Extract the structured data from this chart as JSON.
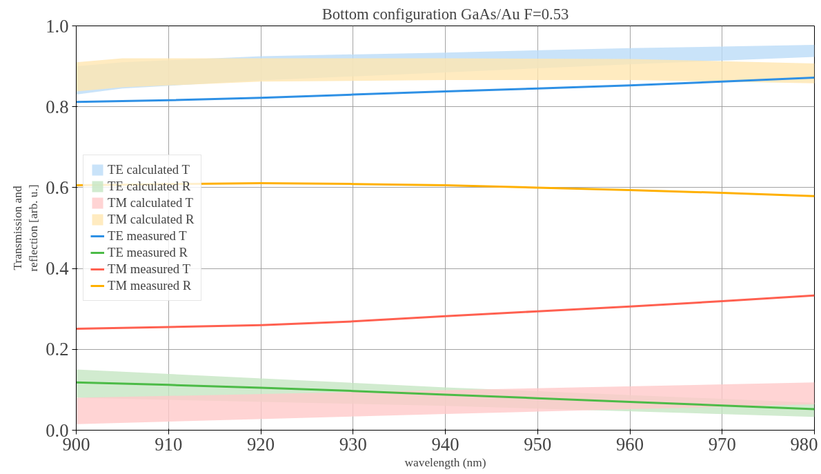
{
  "chart_data": {
    "type": "line",
    "title": "Bottom configuration GaAs/Au F=0.53",
    "xlabel": "wavelength (nm)",
    "ylabel": "Transmission and\nreflection [arb. u.]",
    "xlim": [
      900,
      980
    ],
    "ylim": [
      0,
      1
    ],
    "xticks": [
      900,
      910,
      920,
      930,
      940,
      950,
      960,
      970,
      980
    ],
    "yticks": [
      {
        "value": 0,
        "label": "0.0"
      },
      0.2,
      0.4,
      0.6,
      0.8,
      {
        "value": 1,
        "label": "1.0"
      }
    ],
    "grid": true,
    "legend": "left",
    "series": [
      {
        "name": "TE calculated T",
        "color": "#bcdcf7",
        "x": [
          900,
          905,
          920,
          940,
          960,
          980
        ],
        "values": [
          null,
          null,
          null,
          null,
          null,
          null
        ],
        "lower": [
          0.83,
          0.845,
          0.865,
          0.885,
          0.905,
          0.923
        ],
        "upper": [
          0.9,
          0.91,
          0.925,
          0.934,
          0.945,
          0.953
        ]
      },
      {
        "name": "TE calculated R",
        "color": "#c5e6c3",
        "x": [
          900,
          940,
          980
        ],
        "values": [
          null,
          null,
          null
        ],
        "lower": [
          0.08,
          0.06,
          0.033
        ],
        "upper": [
          0.15,
          0.106,
          0.068
        ]
      },
      {
        "name": "TM calculated T",
        "color": "#ffc9c9",
        "x": [
          900,
          940,
          980
        ],
        "values": [
          null,
          null,
          null
        ],
        "lower": [
          0.015,
          0.04,
          0.064
        ],
        "upper": [
          0.08,
          0.099,
          0.118
        ]
      },
      {
        "name": "TM calculated R",
        "color": "#ffe6b0",
        "x": [
          900,
          905,
          920,
          940,
          960,
          980
        ],
        "values": [
          null,
          null,
          null,
          null,
          null,
          null
        ],
        "lower": [
          0.838,
          0.848,
          0.862,
          0.866,
          0.866,
          0.858
        ],
        "upper": [
          0.91,
          0.92,
          0.92,
          0.92,
          0.918,
          0.907
        ]
      },
      {
        "name": "TE measured T",
        "color": "#2e90e5",
        "x": [
          900,
          910,
          920,
          930,
          940,
          950,
          960,
          970,
          980
        ],
        "values": [
          0.812,
          0.816,
          0.822,
          0.83,
          0.838,
          0.845,
          0.853,
          0.862,
          0.872
        ]
      },
      {
        "name": "TE measured R",
        "color": "#4cbb47",
        "x": [
          900,
          910,
          920,
          930,
          940,
          950,
          960,
          970,
          980
        ],
        "values": [
          0.118,
          0.112,
          0.105,
          0.097,
          0.088,
          0.079,
          0.07,
          0.061,
          0.052
        ]
      },
      {
        "name": "TM measured T",
        "color": "#ff6050",
        "x": [
          900,
          910,
          920,
          930,
          940,
          950,
          960,
          970,
          980
        ],
        "values": [
          0.251,
          0.255,
          0.26,
          0.269,
          0.282,
          0.294,
          0.306,
          0.319,
          0.333
        ]
      },
      {
        "name": "TM measured R",
        "color": "#ffb000",
        "x": [
          900,
          910,
          920,
          930,
          940,
          950,
          960,
          970,
          980
        ],
        "values": [
          0.606,
          null,
          0.611,
          0.609,
          0.606,
          0.6,
          0.594,
          0.587,
          0.579
        ]
      }
    ]
  }
}
